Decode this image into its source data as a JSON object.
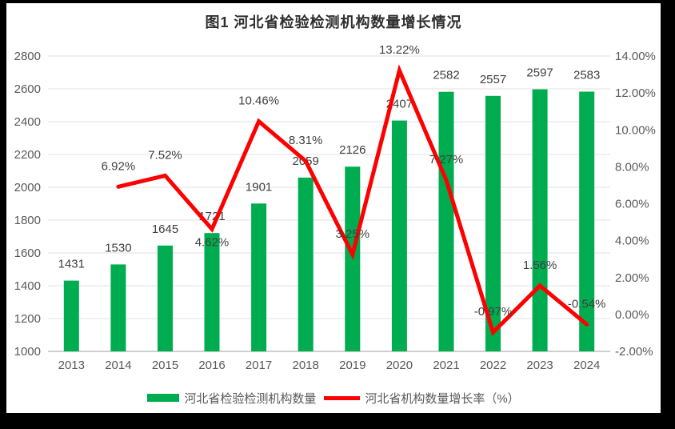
{
  "frame": {
    "background": "#000000",
    "canvas_background": "#FFFFFF"
  },
  "chart_data": {
    "type": "combo-bar-line",
    "title": "图1 河北省检验检测机构数量增长情况",
    "categories": [
      "2013",
      "2014",
      "2015",
      "2016",
      "2017",
      "2018",
      "2019",
      "2020",
      "2021",
      "2022",
      "2023",
      "2024"
    ],
    "series": [
      {
        "name": "河北省检验检测机构数量",
        "chart_type": "bar",
        "axis": "left",
        "color": "#00AC50",
        "values": [
          1431,
          1530,
          1645,
          1721,
          1901,
          2059,
          2126,
          2407,
          2582,
          2557,
          2597,
          2583
        ],
        "labels": [
          "1431",
          "1530",
          "1645",
          "1721",
          "1901",
          "2059",
          "2126",
          "2407",
          "2582",
          "2557",
          "2597",
          "2583"
        ]
      },
      {
        "name": "河北省机构数量增长率（%）",
        "chart_type": "line",
        "axis": "right",
        "color": "#FE0000",
        "values": [
          null,
          6.92,
          7.52,
          4.62,
          10.46,
          8.31,
          3.25,
          13.22,
          7.27,
          -0.97,
          1.56,
          -0.54
        ],
        "labels": [
          null,
          "6.92%",
          "7.52%",
          "4.62%",
          "10.46%",
          "8.31%",
          "3.25%",
          "13.22%",
          "7.27%",
          "-0.97%",
          "1.56%",
          "-0.54%"
        ],
        "label_positions": [
          null,
          "above",
          "above",
          "below",
          "above",
          "above",
          "above",
          "above",
          "above",
          "above",
          "above",
          "above"
        ]
      }
    ],
    "left_axis": {
      "min": 1000,
      "max": 2800,
      "step": 200,
      "tick_labels": [
        "2800",
        "2600",
        "2400",
        "2200",
        "2000",
        "1800",
        "1600",
        "1400",
        "1200",
        "1000"
      ]
    },
    "right_axis": {
      "min": -2,
      "max": 14,
      "step": 2,
      "tick_labels": [
        "14.00%",
        "12.00%",
        "10.00%",
        "8.00%",
        "6.00%",
        "4.00%",
        "2.00%",
        "0.00%",
        "-2.00%"
      ]
    },
    "grid": true,
    "legend_position": "bottom",
    "colors": {
      "grid": "#E2E2E2",
      "axis_line": "#BFBFBF",
      "axis_text": "#595959",
      "label_text": "#3F3F3F",
      "title_text": "#2E2E2E"
    }
  },
  "legend": {
    "items": [
      {
        "label": "河北省检验检测机构数量",
        "swatch": "bar",
        "color": "#00AC50"
      },
      {
        "label": "河北省机构数量增长率（%）",
        "swatch": "line",
        "color": "#FE0000"
      }
    ]
  }
}
